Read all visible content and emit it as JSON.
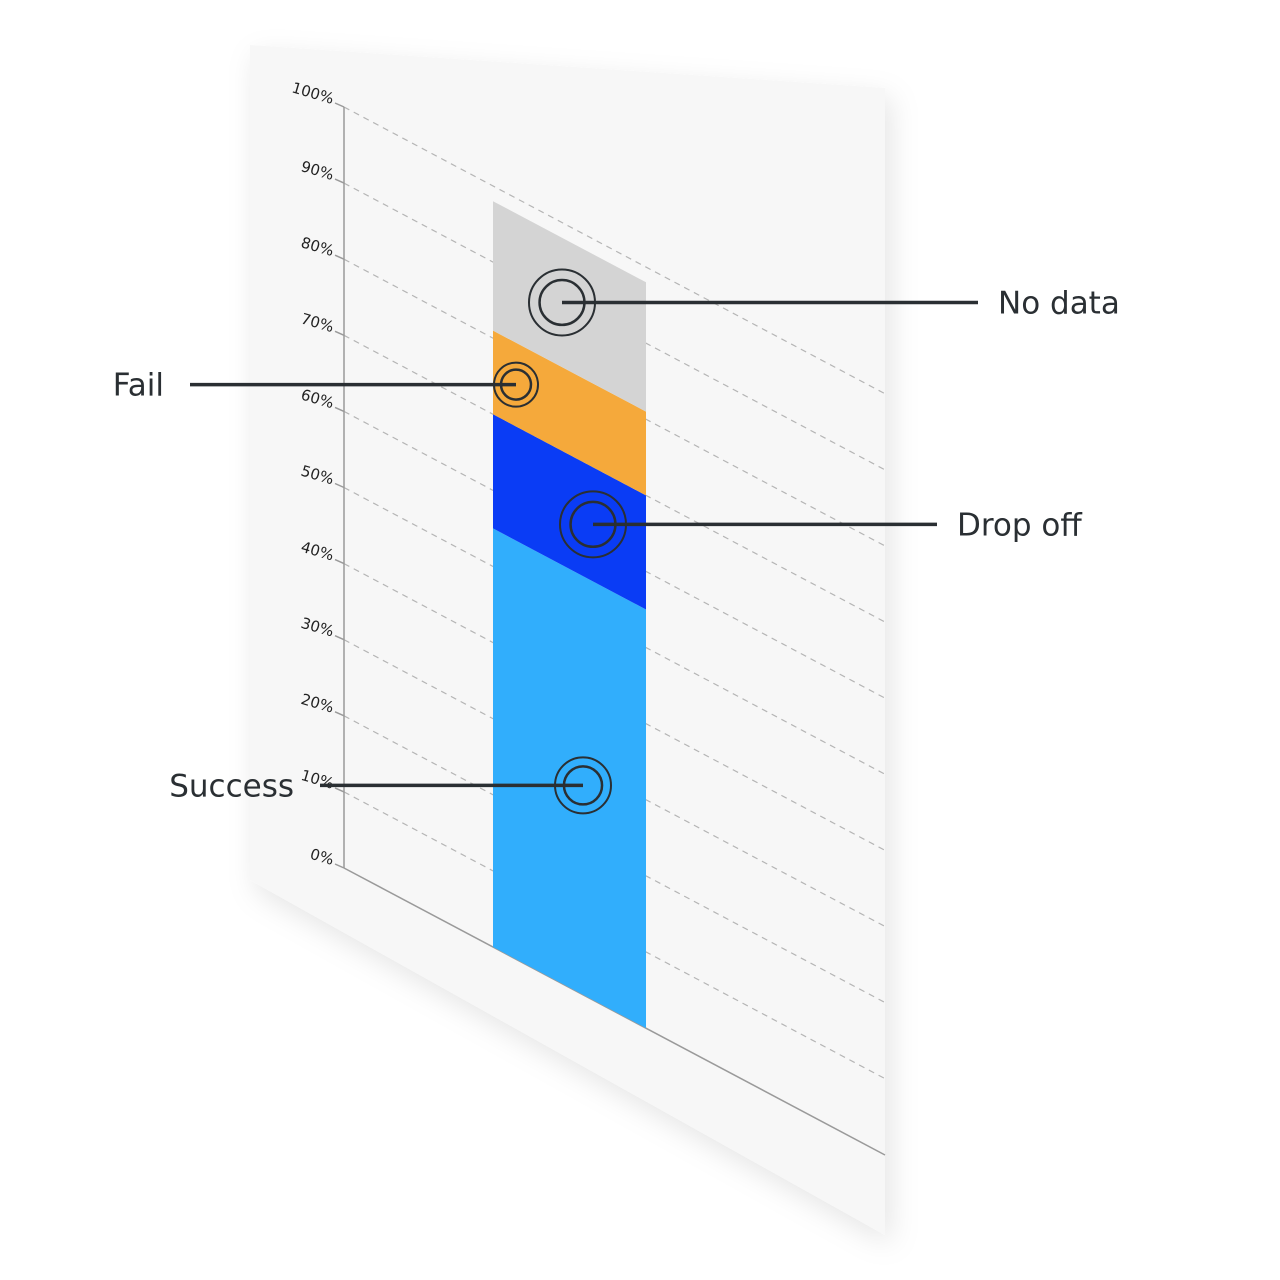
{
  "chart_data": {
    "type": "bar",
    "stacked": true,
    "categories": [
      ""
    ],
    "y_ticks": [
      "0%",
      "10%",
      "20%",
      "30%",
      "40%",
      "50%",
      "60%",
      "70%",
      "80%",
      "90%",
      "100%"
    ],
    "ylim": [
      0,
      100
    ],
    "grid": true,
    "series": [
      {
        "name": "Success",
        "values": [
          55
        ],
        "color": "#31aefc"
      },
      {
        "name": "Drop off",
        "values": [
          15
        ],
        "color": "#0a3cf5"
      },
      {
        "name": "Fail",
        "values": [
          11
        ],
        "color": "#f5a93b"
      },
      {
        "name": "No data",
        "values": [
          17
        ],
        "color": "#d4d4d4"
      }
    ]
  }
}
